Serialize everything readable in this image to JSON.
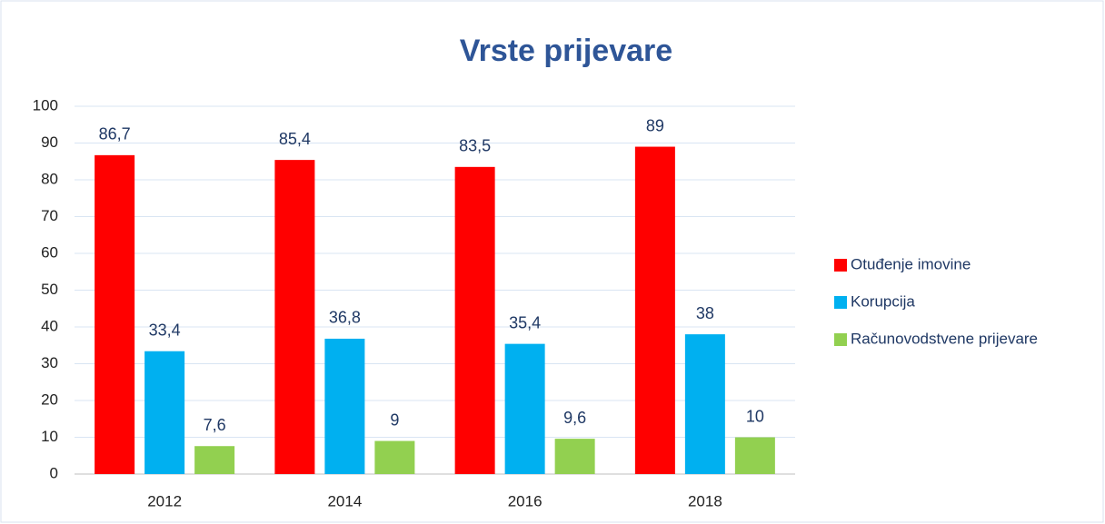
{
  "chart_data": {
    "type": "bar",
    "title": "Vrste prijevare",
    "categories": [
      "2012",
      "2014",
      "2016",
      "2018"
    ],
    "series": [
      {
        "name": "Otuđenje imovine",
        "color": "#ff0000",
        "values": [
          86.7,
          85.4,
          83.5,
          89
        ],
        "value_labels": [
          "86,7",
          "85,4",
          "83,5",
          "89"
        ]
      },
      {
        "name": "Korupcija",
        "color": "#00b0f0",
        "values": [
          33.4,
          36.8,
          35.4,
          38
        ],
        "value_labels": [
          "33,4",
          "36,8",
          "35,4",
          "38"
        ]
      },
      {
        "name": "Računovodstvene prijevare",
        "color": "#92d050",
        "values": [
          7.6,
          9,
          9.6,
          10
        ],
        "value_labels": [
          "7,6",
          "9",
          "9,6",
          "10"
        ]
      }
    ],
    "ylim": [
      0,
      100
    ],
    "yticks": [
      0,
      10,
      20,
      30,
      40,
      50,
      60,
      70,
      80,
      90,
      100
    ],
    "grid": true,
    "legend": "right"
  }
}
